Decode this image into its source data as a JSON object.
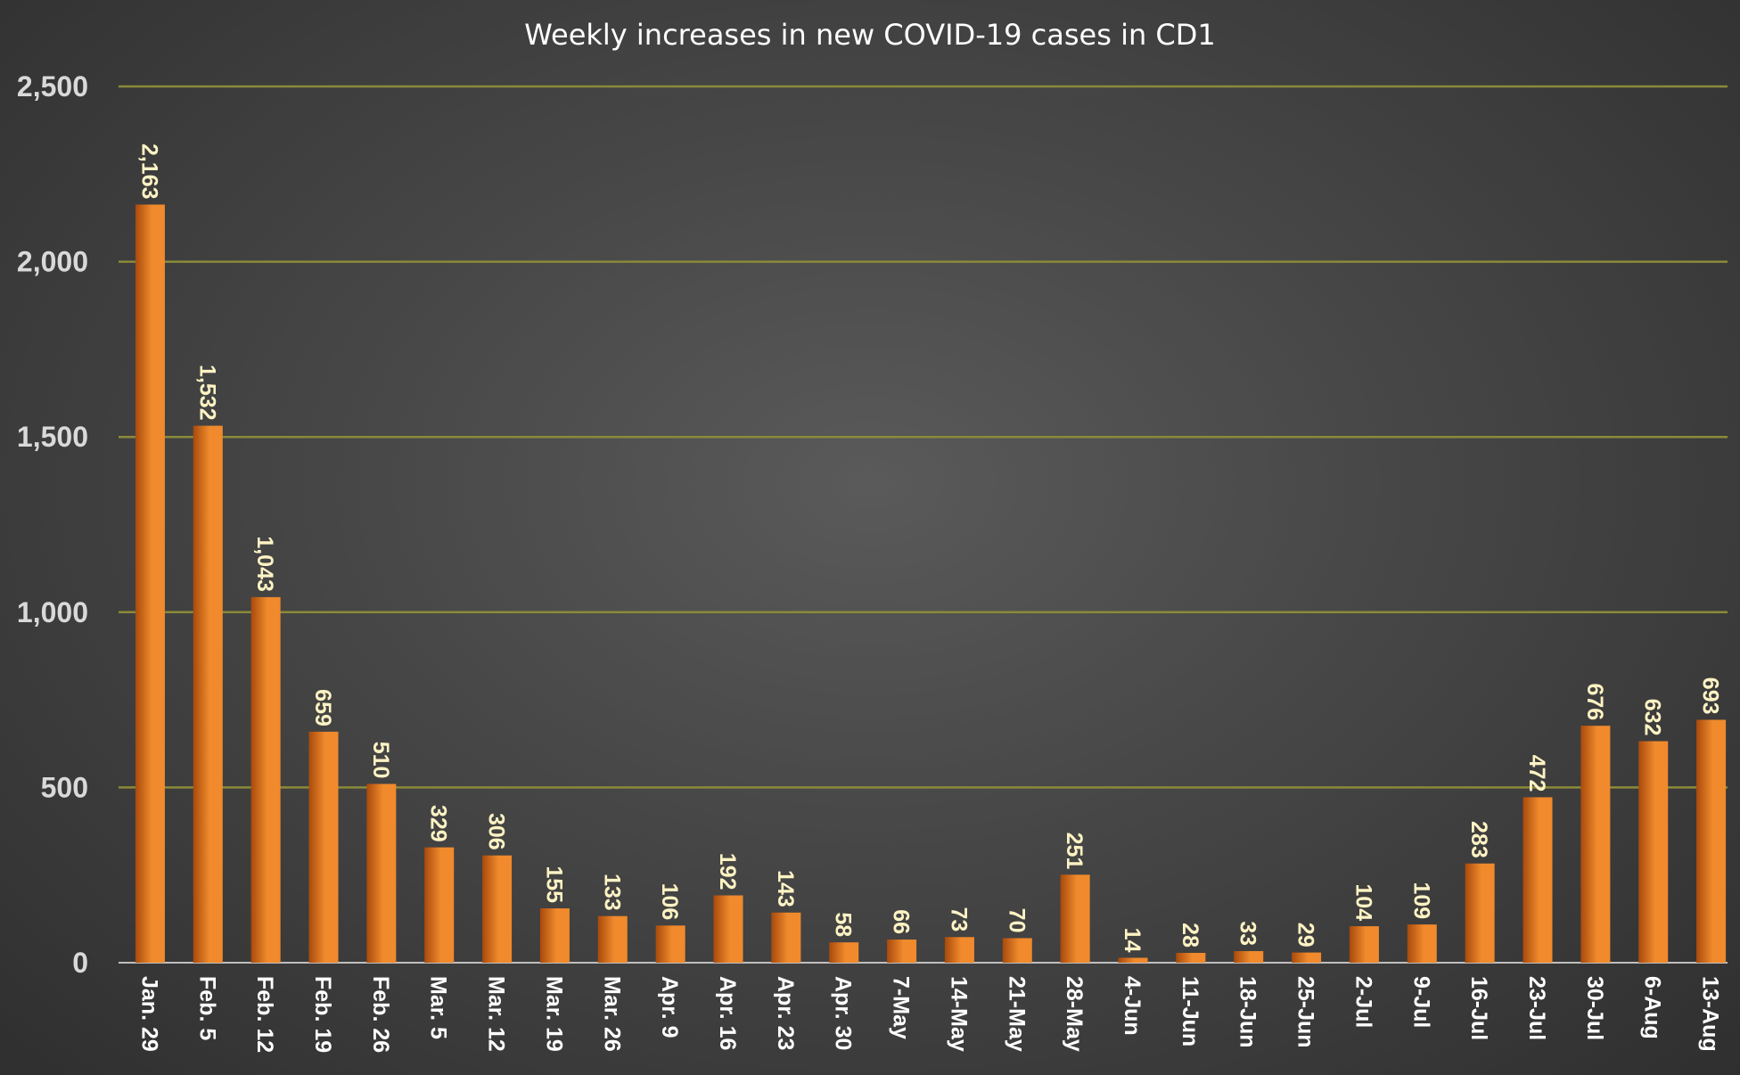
{
  "chart_data": {
    "type": "bar",
    "title": "Weekly increases in new COVID-19 cases in CD1",
    "xlabel": "",
    "ylabel": "",
    "ylim": [
      0,
      2500
    ],
    "yticks": [
      "0",
      "500",
      "1,000",
      "1,500",
      "2,000",
      "2,500"
    ],
    "grid": true,
    "categories": [
      "Jan. 29",
      "Feb. 5",
      "Feb. 12",
      "Feb. 19",
      "Feb. 26",
      "Mar. 5",
      "Mar. 12",
      "Mar. 19",
      "Mar. 26",
      "Apr. 9",
      "Apr. 16",
      "Apr. 23",
      "Apr. 30",
      "7-May",
      "14-May",
      "21-May",
      "28-May",
      "4-Jun",
      "11-Jun",
      "18-Jun",
      "25-Jun",
      "2-Jul",
      "9-Jul",
      "16-Jul",
      "23-Jul",
      "30-Jul",
      "6-Aug",
      "13-Aug"
    ],
    "values": [
      2163,
      1532,
      1043,
      659,
      510,
      329,
      306,
      155,
      133,
      106,
      192,
      143,
      58,
      66,
      73,
      70,
      251,
      14,
      28,
      33,
      29,
      104,
      109,
      283,
      472,
      676,
      632,
      693
    ],
    "value_labels": [
      "2,163",
      "1,532",
      "1,043",
      "659",
      "510",
      "329",
      "306",
      "155",
      "133",
      "106",
      "192",
      "143",
      "58",
      "66",
      "73",
      "70",
      "251",
      "14",
      "28",
      "33",
      "29",
      "104",
      "109",
      "283",
      "472",
      "676",
      "632",
      "693"
    ],
    "colors": {
      "bar_light": "#f08a2c",
      "bar_dark": "#a84a0c",
      "grid": "#8a8a3a",
      "label": "#fff3c4",
      "title": "#ffffff"
    }
  }
}
